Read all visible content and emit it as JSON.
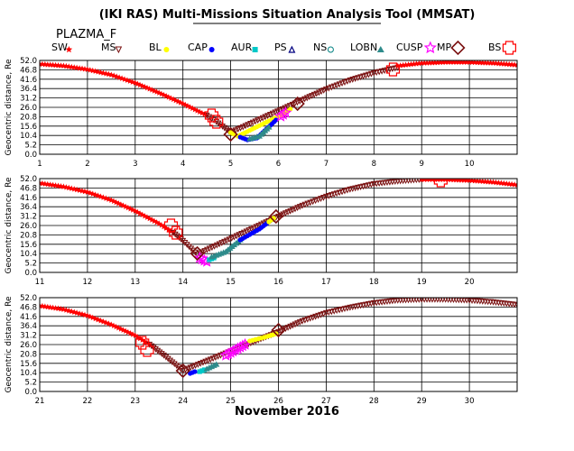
{
  "chart_data": {
    "type": "scatter",
    "title": "(IKI RAS) Multi-Missions Situation Analysis Tool (MMSAT)",
    "subtitle": "PLAZMA_F",
    "xlabel": "November 2016",
    "ylabel": "Geocentric distance, Re",
    "grid": true,
    "legend_position": "top",
    "legend": [
      {
        "label": "SW",
        "color": "#ff0000",
        "marker": "star"
      },
      {
        "label": "MS",
        "color": "#7a1010",
        "marker": "triangle-down"
      },
      {
        "label": "BL",
        "color": "#ffff00",
        "marker": "circle"
      },
      {
        "label": "CAP",
        "color": "#0000ff",
        "marker": "circle"
      },
      {
        "label": "AUR",
        "color": "#00c8c8",
        "marker": "square"
      },
      {
        "label": "PS",
        "color": "#000080",
        "marker": "triangle-up"
      },
      {
        "label": "NS",
        "color": "#008080",
        "marker": "circle-open"
      },
      {
        "label": "LOBN",
        "color": "#2e8b8b",
        "marker": "triangle-filled"
      },
      {
        "label": "CUSP",
        "color": "#ff00ff",
        "marker": "star-open"
      },
      {
        "label": "MP",
        "color": "#7a1010",
        "marker": "diamond-open"
      },
      {
        "label": "BS",
        "color": "#ff0000",
        "marker": "plus-open"
      }
    ],
    "panels": [
      {
        "xlim": [
          1,
          11
        ],
        "ylim": [
          0,
          52
        ],
        "xticks": [
          "1",
          "2",
          "3",
          "4",
          "5",
          "6",
          "7",
          "8",
          "9",
          "10"
        ],
        "yticks": [
          "0.0",
          "5.2",
          "10.4",
          "15.6",
          "20.8",
          "26.0",
          "31.2",
          "36.4",
          "41.6",
          "46.8",
          "52.0"
        ],
        "series": [
          {
            "region": "SW",
            "x": [
              1.0,
              1.5,
              2.0,
              2.5,
              3.0,
              3.5,
              4.0,
              4.5
            ],
            "y": [
              50.0,
              49.0,
              47.0,
              44.0,
              39.5,
              34.0,
              28.0,
              21.5
            ]
          },
          {
            "region": "MS",
            "x": [
              4.5,
              4.7,
              5.0,
              6.5,
              7.0,
              7.5,
              8.0,
              8.5
            ],
            "y": [
              21.5,
              18.0,
              12.0,
              30.0,
              36.0,
              41.0,
              45.0,
              48.0
            ]
          },
          {
            "region": "BL",
            "x": [
              5.0,
              5.15,
              6.15,
              6.25
            ],
            "y": [
              12.0,
              10.0,
              23.0,
              25.0
            ]
          },
          {
            "region": "CAP",
            "x": [
              5.2,
              5.35,
              5.55,
              5.75,
              5.95
            ],
            "y": [
              9.5,
              8.0,
              9.0,
              14.0,
              19.0
            ]
          },
          {
            "region": "LOBN",
            "x": [
              5.4,
              5.6,
              5.8
            ],
            "y": [
              8.5,
              10.0,
              15.0
            ]
          },
          {
            "region": "CUSP",
            "x": [
              6.05,
              6.15
            ],
            "y": [
              21.0,
              23.0
            ]
          },
          {
            "region": "SW",
            "x": [
              8.5,
              9.0,
              9.5,
              10.0,
              10.5,
              11.0
            ],
            "y": [
              49.0,
              50.5,
              51.0,
              51.0,
              50.5,
              49.5
            ]
          }
        ],
        "crossings": [
          {
            "type": "BS",
            "x": 4.6,
            "y": 21.5
          },
          {
            "type": "BS",
            "x": 4.7,
            "y": 18.0
          },
          {
            "type": "MP",
            "x": 5.0,
            "y": 11.0
          },
          {
            "type": "MP",
            "x": 6.4,
            "y": 28.0
          },
          {
            "type": "BS",
            "x": 8.4,
            "y": 47.0
          }
        ]
      },
      {
        "xlim": [
          11,
          21
        ],
        "ylim": [
          0,
          52
        ],
        "xticks": [
          "11",
          "12",
          "13",
          "14",
          "15",
          "16",
          "17",
          "18",
          "19",
          "20"
        ],
        "yticks": [
          "0.0",
          "5.2",
          "10.4",
          "15.6",
          "20.8",
          "26.0",
          "31.2",
          "36.4",
          "41.6",
          "46.8",
          "52.0"
        ],
        "series": [
          {
            "region": "SW",
            "x": [
              11.0,
              11.5,
              12.0,
              12.5,
              13.0,
              13.5,
              13.8
            ],
            "y": [
              49.5,
              47.5,
              44.5,
              40.0,
              34.0,
              27.0,
              22.0
            ]
          },
          {
            "region": "MS",
            "x": [
              13.8,
              14.0,
              14.3,
              16.0,
              16.5,
              17.0,
              17.5,
              18.0,
              18.5,
              19.0
            ],
            "y": [
              22.0,
              17.5,
              10.0,
              31.0,
              37.0,
              42.0,
              46.0,
              49.0,
              50.5,
              51.5
            ]
          },
          {
            "region": "CUSP",
            "x": [
              14.35,
              14.5
            ],
            "y": [
              8.0,
              6.0
            ]
          },
          {
            "region": "AUR",
            "x": [
              14.55,
              14.65
            ],
            "y": [
              7.0,
              8.0
            ]
          },
          {
            "region": "LOBN",
            "x": [
              14.6,
              14.9,
              15.2
            ],
            "y": [
              8.5,
              11.5,
              18.0
            ]
          },
          {
            "region": "CAP",
            "x": [
              15.2,
              15.6,
              15.85
            ],
            "y": [
              18.0,
              24.0,
              29.0
            ]
          },
          {
            "region": "BL",
            "x": [
              15.8,
              15.9
            ],
            "y": [
              28.0,
              30.0
            ]
          },
          {
            "region": "SW",
            "x": [
              19.0,
              19.5,
              20.0,
              20.5,
              21.0
            ],
            "y": [
              51.5,
              51.5,
              51.0,
              50.0,
              48.5
            ]
          }
        ],
        "crossings": [
          {
            "type": "BS",
            "x": 13.75,
            "y": 26.0
          },
          {
            "type": "BS",
            "x": 13.85,
            "y": 22.0
          },
          {
            "type": "MP",
            "x": 14.3,
            "y": 10.5
          },
          {
            "type": "MP",
            "x": 15.95,
            "y": 31.0
          },
          {
            "type": "BS",
            "x": 19.4,
            "y": 51.0
          }
        ]
      },
      {
        "xlim": [
          21,
          31
        ],
        "ylim": [
          0,
          52
        ],
        "xticks": [
          "21",
          "22",
          "23",
          "24",
          "25",
          "26",
          "27",
          "28",
          "29",
          "30"
        ],
        "yticks": [
          "0.0",
          "5.2",
          "10.4",
          "15.6",
          "20.8",
          "26.0",
          "31.2",
          "36.4",
          "41.6",
          "46.8",
          "52.0"
        ],
        "series": [
          {
            "region": "SW",
            "x": [
              21.0,
              21.5,
              22.0,
              22.5,
              23.0,
              23.3
            ],
            "y": [
              47.5,
              45.5,
              42.0,
              37.0,
              31.0,
              26.0
            ]
          },
          {
            "region": "MS",
            "x": [
              23.3,
              23.6,
              24.0,
              26.0,
              26.5,
              27.0,
              27.5,
              28.0,
              28.5,
              29.0,
              29.5,
              30.0,
              30.5,
              31.0
            ],
            "y": [
              26.0,
              20.0,
              11.5,
              33.0,
              39.0,
              43.5,
              46.5,
              49.0,
              50.5,
              51.0,
              51.0,
              50.5,
              49.5,
              48.0
            ]
          },
          {
            "region": "CAP",
            "x": [
              24.15,
              24.25
            ],
            "y": [
              10.0,
              11.0
            ]
          },
          {
            "region": "AUR",
            "x": [
              24.35,
              24.45
            ],
            "y": [
              11.0,
              12.0
            ]
          },
          {
            "region": "LOBN",
            "x": [
              24.5,
              24.7
            ],
            "y": [
              12.5,
              15.0
            ]
          },
          {
            "region": "CUSP",
            "x": [
              24.9,
              25.1,
              25.3
            ],
            "y": [
              20.0,
              23.0,
              26.0
            ]
          },
          {
            "region": "BL",
            "x": [
              25.4,
              25.7,
              25.95
            ],
            "y": [
              28.0,
              30.0,
              32.0
            ]
          }
        ],
        "crossings": [
          {
            "type": "BS",
            "x": 23.15,
            "y": 27.0
          },
          {
            "type": "BS",
            "x": 23.25,
            "y": 23.0
          },
          {
            "type": "MP",
            "x": 24.0,
            "y": 11.5
          },
          {
            "type": "MP",
            "x": 26.0,
            "y": 34.0
          }
        ]
      }
    ]
  }
}
